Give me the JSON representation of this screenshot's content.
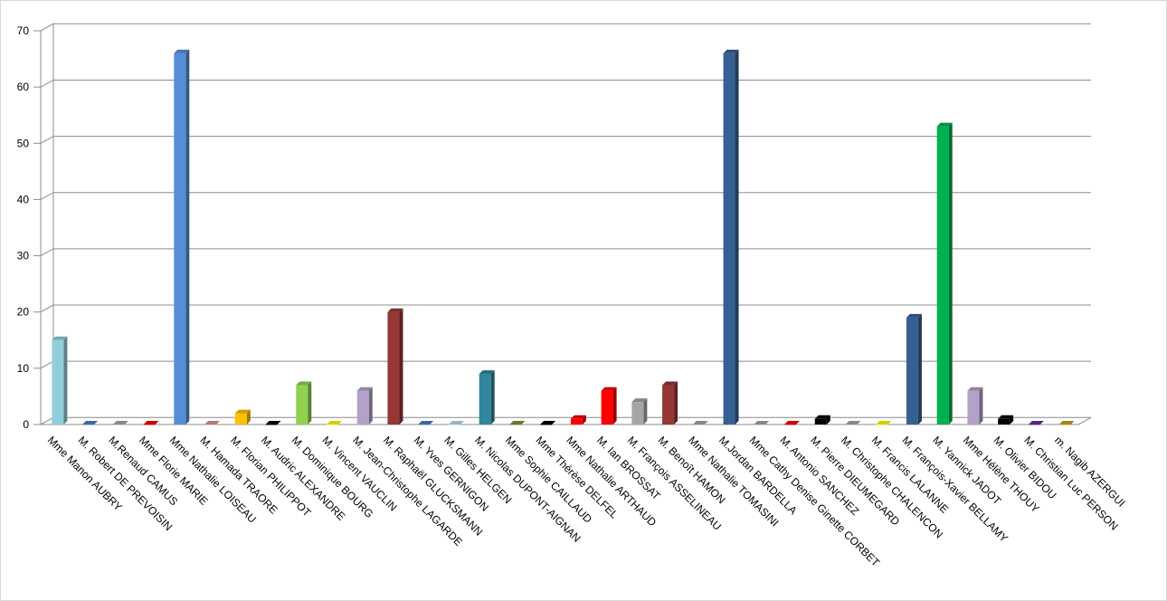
{
  "chart_data": {
    "type": "bar",
    "title": "",
    "xlabel": "",
    "ylabel": "",
    "ylim": [
      0,
      70
    ],
    "yticks": [
      0,
      10,
      20,
      30,
      40,
      50,
      60,
      70
    ],
    "grid": true,
    "legend": "none",
    "categories": [
      "Mme Manon AUBRY",
      "M. Robert DE PREVOISIN",
      "M.Renaud CAMUS",
      "Mme Florie MARIE",
      "Mme Nathalie LOISEAU",
      "M. Hamada TRAORE",
      "M. Florian PHILIPPOT",
      "M. Audric ALEXANDRE",
      "M. Dominique BOURG",
      "M. Vincent VAUCLIN",
      "M. Jean-Christophe LAGARDE",
      "M. Raphaël GLUCKSMANN",
      "M. Yves GERNIGON",
      "M. Gilles HELGEN",
      "M. Nicolas DUPONT-AIGNAN",
      "Mme Sophie CAILLAUD",
      "Mme Thérèse DELFEL",
      "Mme Nathalie ARTHAUD",
      "M. Ian BROSSAT",
      "M. François ASSELINEAU",
      "M. Benoît HAMON",
      "Mme Nathalie TOMASINI",
      "M.Jordan BARDELLA",
      "Mme Cathy Denise Ginette CORBET",
      "M. Antonio SANCHEZ",
      "M. Pierre DIEUMEGARD",
      "M. Christophe CHALENCON",
      "M. Francis LALANNE",
      "M. François-Xavier BELLAMY",
      "M. Yannick JADOT",
      "Mme Hélène THOUY",
      "M. Olivier BIDOU",
      "M. Christian Luc PERSON",
      "m. Nagib AZERGUI"
    ],
    "values": [
      15,
      0,
      0,
      0,
      66,
      0,
      2,
      0,
      7,
      0,
      6,
      20,
      0,
      0,
      9,
      0,
      0,
      1,
      6,
      4,
      7,
      0,
      66,
      0,
      0,
      1,
      0,
      0,
      19,
      53,
      6,
      1,
      0,
      0
    ],
    "colors": [
      "#92CDDC",
      "#4F81BD",
      "#A6A6A6",
      "#FF0000",
      "#558ED5",
      "#D99694",
      "#FFC000",
      "#000000",
      "#92D050",
      "#FFFF00",
      "#B3A2C7",
      "#953735",
      "#4F81BD",
      "#B7DEE8",
      "#31859C",
      "#77933C",
      "#000000",
      "#FF0000",
      "#FF0000",
      "#A6A6A6",
      "#953735",
      "#A6A6A6",
      "#376092",
      "#A6A6A6",
      "#FF0000",
      "#000000",
      "#A6A6A6",
      "#FFFF00",
      "#376092",
      "#00B050",
      "#B3A2C7",
      "#000000",
      "#7030A0",
      "#C9A227"
    ]
  }
}
